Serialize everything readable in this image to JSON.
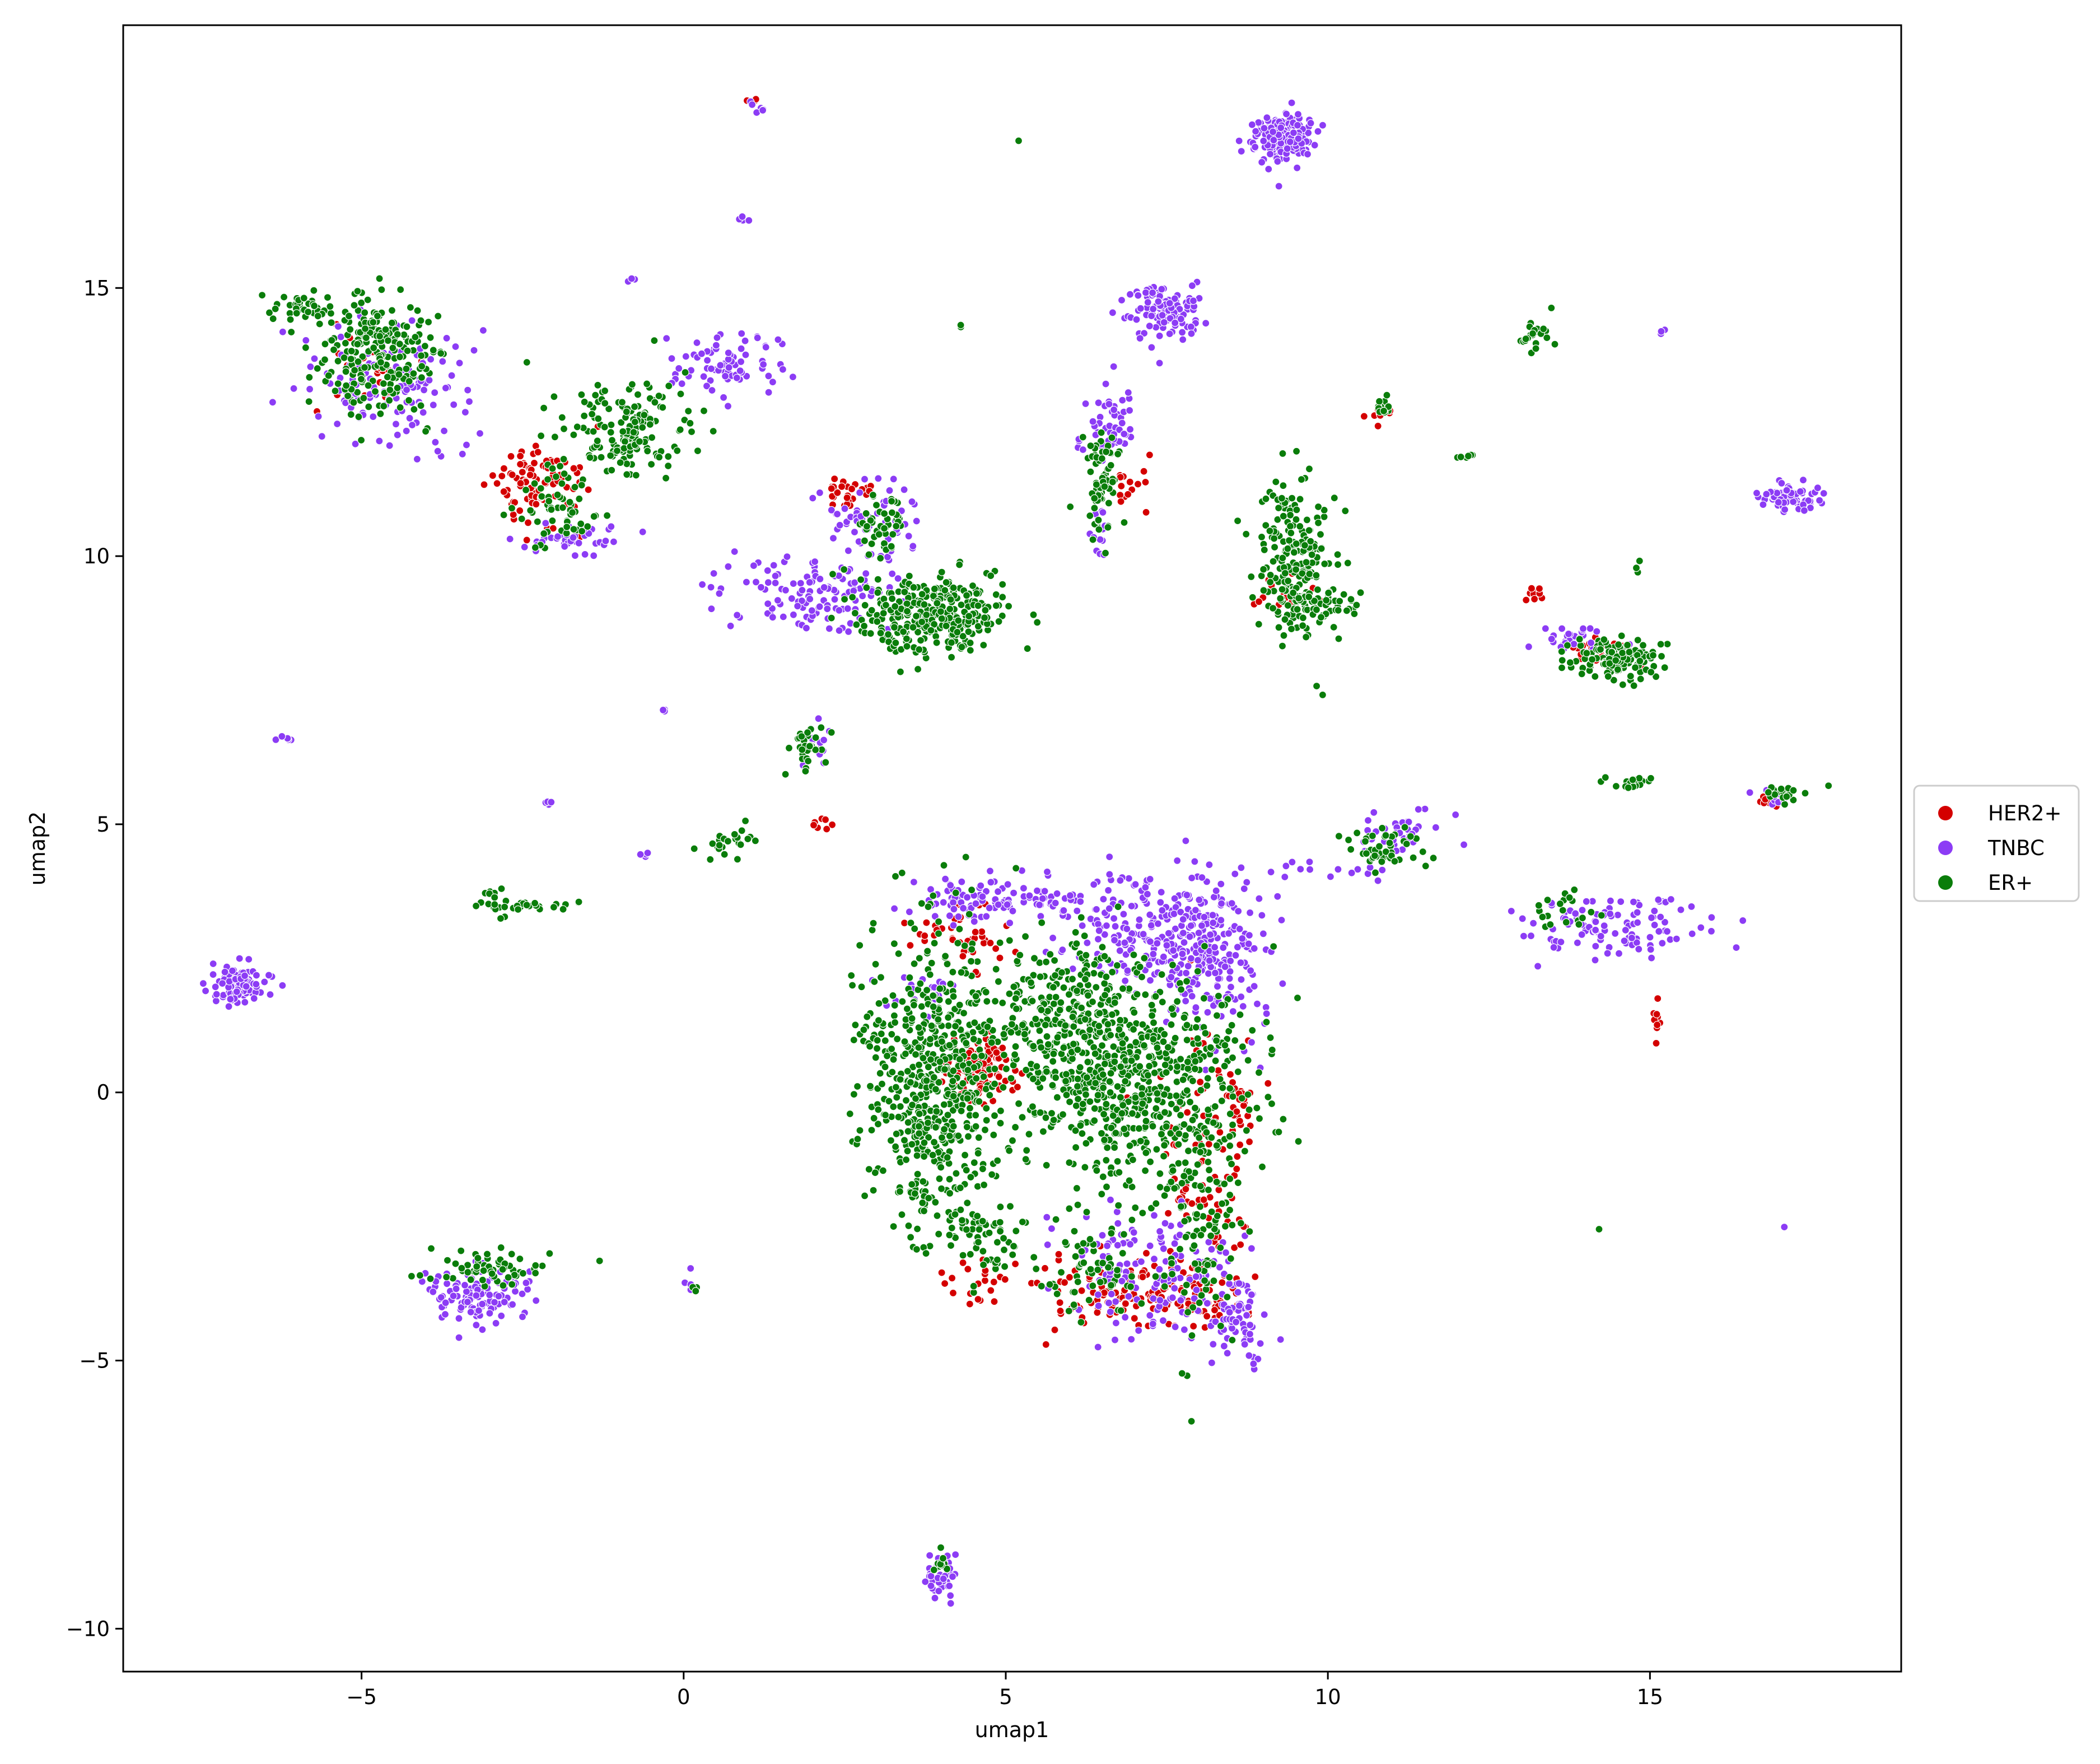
{
  "chart_data": {
    "type": "scatter",
    "title": "",
    "xlabel": "umap1",
    "ylabel": "umap2",
    "xlim": [
      -8.7,
      18.9
    ],
    "ylim": [
      -10.8,
      19.9
    ],
    "xticks": [
      -5,
      0,
      5,
      10,
      15
    ],
    "yticks": [
      -10,
      -5,
      0,
      5,
      10,
      15
    ],
    "xtick_labels": [
      "−5",
      "0",
      "5",
      "10",
      "15"
    ],
    "ytick_labels": [
      "−10",
      "−5",
      "0",
      "5",
      "10",
      "15"
    ],
    "grid": false,
    "legend_position": "outside right",
    "series": [
      {
        "name": "HER2+",
        "color": "#d40000",
        "clusters": [
          {
            "x": 4.6,
            "y": 0.4,
            "sx": 0.25,
            "sy": 0.3,
            "n": 140
          },
          {
            "x": 7.2,
            "y": -3.8,
            "sx": 0.8,
            "sy": 0.3,
            "n": 150
          },
          {
            "x": 8.0,
            "y": -1.5,
            "sx": 0.35,
            "sy": 1.2,
            "n": 90
          },
          {
            "x": -2.2,
            "y": 11.3,
            "sx": 0.35,
            "sy": 0.4,
            "n": 90
          },
          {
            "x": 2.5,
            "y": 11.2,
            "sx": 0.2,
            "sy": 0.15,
            "n": 25
          },
          {
            "x": 14.2,
            "y": 8.2,
            "sx": 0.25,
            "sy": 0.15,
            "n": 30
          },
          {
            "x": 13.2,
            "y": 9.3,
            "sx": 0.1,
            "sy": 0.08,
            "n": 12
          },
          {
            "x": 15.1,
            "y": 1.4,
            "sx": 0.04,
            "sy": 0.25,
            "n": 12
          },
          {
            "x": 4.3,
            "y": 3.0,
            "sx": 0.4,
            "sy": 0.4,
            "n": 45
          },
          {
            "x": 6.9,
            "y": 11.3,
            "sx": 0.15,
            "sy": 0.2,
            "n": 15
          },
          {
            "x": 9.3,
            "y": 9.2,
            "sx": 0.2,
            "sy": 0.15,
            "n": 15
          },
          {
            "x": 8.6,
            "y": -0.2,
            "sx": 0.15,
            "sy": 0.4,
            "n": 25
          },
          {
            "x": 4.5,
            "y": -3.5,
            "sx": 0.3,
            "sy": 0.2,
            "n": 20
          },
          {
            "x": 2.1,
            "y": 5.0,
            "sx": 0.1,
            "sy": 0.06,
            "n": 8
          },
          {
            "x": 10.8,
            "y": 12.6,
            "sx": 0.1,
            "sy": 0.06,
            "n": 8
          },
          {
            "x": -5.0,
            "y": 13.5,
            "sx": 0.3,
            "sy": 0.4,
            "n": 20
          },
          {
            "x": 1.1,
            "y": 18.5,
            "sx": 0.04,
            "sy": 0.04,
            "n": 3
          },
          {
            "x": 16.8,
            "y": 5.4,
            "sx": 0.1,
            "sy": 0.05,
            "n": 6
          }
        ]
      },
      {
        "name": "TNBC",
        "color": "#8c3cf5",
        "clusters": [
          {
            "x": 7.6,
            "y": 3.0,
            "sx": 0.7,
            "sy": 0.6,
            "n": 280
          },
          {
            "x": 8.2,
            "y": 2.5,
            "sx": 0.35,
            "sy": 0.8,
            "n": 120
          },
          {
            "x": 4.5,
            "y": 3.6,
            "sx": 0.5,
            "sy": 0.25,
            "n": 80
          },
          {
            "x": 7.3,
            "y": -3.3,
            "sx": 0.7,
            "sy": 0.6,
            "n": 150
          },
          {
            "x": 8.6,
            "y": -4.2,
            "sx": 0.2,
            "sy": 0.45,
            "n": 60
          },
          {
            "x": 9.3,
            "y": 17.8,
            "sx": 0.22,
            "sy": 0.22,
            "n": 220
          },
          {
            "x": 7.5,
            "y": 14.6,
            "sx": 0.3,
            "sy": 0.25,
            "n": 130
          },
          {
            "x": -4.6,
            "y": 13.2,
            "sx": 0.6,
            "sy": 0.55,
            "n": 130
          },
          {
            "x": 0.7,
            "y": 13.6,
            "sx": 0.4,
            "sy": 0.3,
            "n": 80
          },
          {
            "x": -1.8,
            "y": 10.3,
            "sx": 0.35,
            "sy": 0.15,
            "n": 45
          },
          {
            "x": 2.0,
            "y": 9.3,
            "sx": 0.7,
            "sy": 0.35,
            "n": 120
          },
          {
            "x": 3.0,
            "y": 10.5,
            "sx": 0.45,
            "sy": 0.45,
            "n": 60
          },
          {
            "x": -6.9,
            "y": 2.0,
            "sx": 0.22,
            "sy": 0.17,
            "n": 100
          },
          {
            "x": -3.2,
            "y": -3.8,
            "sx": 0.45,
            "sy": 0.25,
            "n": 110
          },
          {
            "x": 17.2,
            "y": 11.1,
            "sx": 0.25,
            "sy": 0.12,
            "n": 70
          },
          {
            "x": 14.4,
            "y": 3.1,
            "sx": 0.7,
            "sy": 0.3,
            "n": 110
          },
          {
            "x": 13.8,
            "y": 8.4,
            "sx": 0.35,
            "sy": 0.15,
            "n": 30
          },
          {
            "x": 6.6,
            "y": 12.4,
            "sx": 0.25,
            "sy": 0.3,
            "n": 50
          },
          {
            "x": 6.5,
            "y": 10.4,
            "sx": 0.08,
            "sy": 0.25,
            "n": 12
          },
          {
            "x": 4.0,
            "y": -9.0,
            "sx": 0.12,
            "sy": 0.2,
            "n": 45
          },
          {
            "x": 11.1,
            "y": 4.9,
            "sx": 0.3,
            "sy": 0.15,
            "n": 35
          },
          {
            "x": 10.0,
            "y": 4.2,
            "sx": 0.5,
            "sy": 0.12,
            "n": 15
          },
          {
            "x": 5.8,
            "y": 3.6,
            "sx": 0.25,
            "sy": 0.2,
            "n": 30
          },
          {
            "x": 3.6,
            "y": 1.9,
            "sx": 0.25,
            "sy": 0.2,
            "n": 20
          },
          {
            "x": -6.2,
            "y": 6.6,
            "sx": 0.12,
            "sy": 0.05,
            "n": 6
          },
          {
            "x": -2.1,
            "y": 5.4,
            "sx": 0.04,
            "sy": 0.03,
            "n": 4
          },
          {
            "x": -0.6,
            "y": 4.45,
            "sx": 0.05,
            "sy": 0.04,
            "n": 4
          },
          {
            "x": -0.8,
            "y": 15.2,
            "sx": 0.05,
            "sy": 0.04,
            "n": 3
          },
          {
            "x": 0.95,
            "y": 16.3,
            "sx": 0.06,
            "sy": 0.08,
            "n": 5
          },
          {
            "x": 1.2,
            "y": 18.4,
            "sx": 0.1,
            "sy": 0.07,
            "n": 6
          },
          {
            "x": -0.35,
            "y": 7.1,
            "sx": 0.03,
            "sy": 0.03,
            "n": 3
          },
          {
            "x": 15.2,
            "y": 14.2,
            "sx": 0.04,
            "sy": 0.04,
            "n": 3
          },
          {
            "x": 17.1,
            "y": -2.5,
            "sx": 0.01,
            "sy": 0.01,
            "n": 1
          },
          {
            "x": 0.1,
            "y": -3.6,
            "sx": 0.05,
            "sy": 0.1,
            "n": 4
          },
          {
            "x": 2.0,
            "y": 6.4,
            "sx": 0.12,
            "sy": 0.2,
            "n": 15
          },
          {
            "x": 16.9,
            "y": 5.5,
            "sx": 0.15,
            "sy": 0.08,
            "n": 10
          }
        ]
      },
      {
        "name": "ER+",
        "color": "#0a7d0a",
        "clusters": [
          {
            "x": 3.9,
            "y": 0.2,
            "sx": 0.55,
            "sy": 1.4,
            "n": 600
          },
          {
            "x": 7.0,
            "y": 0.3,
            "sx": 0.9,
            "sy": 1.0,
            "n": 650
          },
          {
            "x": 5.8,
            "y": 1.5,
            "sx": 0.6,
            "sy": 0.7,
            "n": 200
          },
          {
            "x": 8.0,
            "y": -2.2,
            "sx": 0.3,
            "sy": 1.1,
            "n": 120
          },
          {
            "x": 6.4,
            "y": -3.3,
            "sx": 0.45,
            "sy": 0.5,
            "n": 70
          },
          {
            "x": 4.6,
            "y": -2.6,
            "sx": 0.35,
            "sy": 0.4,
            "n": 60
          },
          {
            "x": 3.8,
            "y": 8.9,
            "sx": 0.55,
            "sy": 0.35,
            "n": 320
          },
          {
            "x": 3.1,
            "y": 10.6,
            "sx": 0.2,
            "sy": 0.35,
            "n": 45
          },
          {
            "x": 9.5,
            "y": 10.0,
            "sx": 0.3,
            "sy": 0.7,
            "n": 200
          },
          {
            "x": 9.9,
            "y": 9.1,
            "sx": 0.4,
            "sy": 0.2,
            "n": 60
          },
          {
            "x": -4.8,
            "y": 13.8,
            "sx": 0.45,
            "sy": 0.6,
            "n": 230
          },
          {
            "x": -0.9,
            "y": 12.4,
            "sx": 0.5,
            "sy": 0.45,
            "n": 160
          },
          {
            "x": -1.9,
            "y": 10.9,
            "sx": 0.3,
            "sy": 0.35,
            "n": 60
          },
          {
            "x": 6.5,
            "y": 11.4,
            "sx": 0.15,
            "sy": 0.5,
            "n": 70
          },
          {
            "x": 14.5,
            "y": 8.1,
            "sx": 0.4,
            "sy": 0.2,
            "n": 120
          },
          {
            "x": -3.0,
            "y": -3.3,
            "sx": 0.55,
            "sy": 0.2,
            "n": 60
          },
          {
            "x": -2.4,
            "y": 3.5,
            "sx": 0.4,
            "sy": 0.05,
            "n": 25
          },
          {
            "x": -2.9,
            "y": 3.6,
            "sx": 0.08,
            "sy": 0.2,
            "n": 12
          },
          {
            "x": 0.7,
            "y": 4.6,
            "sx": 0.22,
            "sy": 0.18,
            "n": 25
          },
          {
            "x": 1.9,
            "y": 6.4,
            "sx": 0.12,
            "sy": 0.18,
            "n": 35
          },
          {
            "x": 10.9,
            "y": 4.6,
            "sx": 0.3,
            "sy": 0.2,
            "n": 50
          },
          {
            "x": 14.6,
            "y": 5.75,
            "sx": 0.25,
            "sy": 0.08,
            "n": 18
          },
          {
            "x": 13.2,
            "y": 14.1,
            "sx": 0.15,
            "sy": 0.2,
            "n": 22
          },
          {
            "x": 17.0,
            "y": 5.55,
            "sx": 0.2,
            "sy": 0.08,
            "n": 18
          },
          {
            "x": 12.1,
            "y": 11.85,
            "sx": 0.08,
            "sy": 0.03,
            "n": 6
          },
          {
            "x": 10.8,
            "y": 12.8,
            "sx": 0.1,
            "sy": 0.1,
            "n": 12
          },
          {
            "x": 4.3,
            "y": 14.3,
            "sx": 0.04,
            "sy": 0.03,
            "n": 3
          },
          {
            "x": 5.2,
            "y": 17.75,
            "sx": 0.01,
            "sy": 0.01,
            "n": 1
          },
          {
            "x": 14.2,
            "y": -2.55,
            "sx": 0.01,
            "sy": 0.01,
            "n": 1
          },
          {
            "x": 4.0,
            "y": -8.8,
            "sx": 0.08,
            "sy": 0.1,
            "n": 10
          },
          {
            "x": 13.6,
            "y": 3.4,
            "sx": 0.3,
            "sy": 0.2,
            "n": 20
          },
          {
            "x": 14.8,
            "y": 9.8,
            "sx": 0.05,
            "sy": 0.05,
            "n": 3
          },
          {
            "x": 0.15,
            "y": -3.6,
            "sx": 0.05,
            "sy": 0.1,
            "n": 3
          },
          {
            "x": -6.0,
            "y": 14.6,
            "sx": 0.3,
            "sy": 0.15,
            "n": 40
          }
        ]
      }
    ],
    "legend": {
      "entries": [
        "HER2+",
        "TNBC",
        "ER+"
      ]
    }
  }
}
